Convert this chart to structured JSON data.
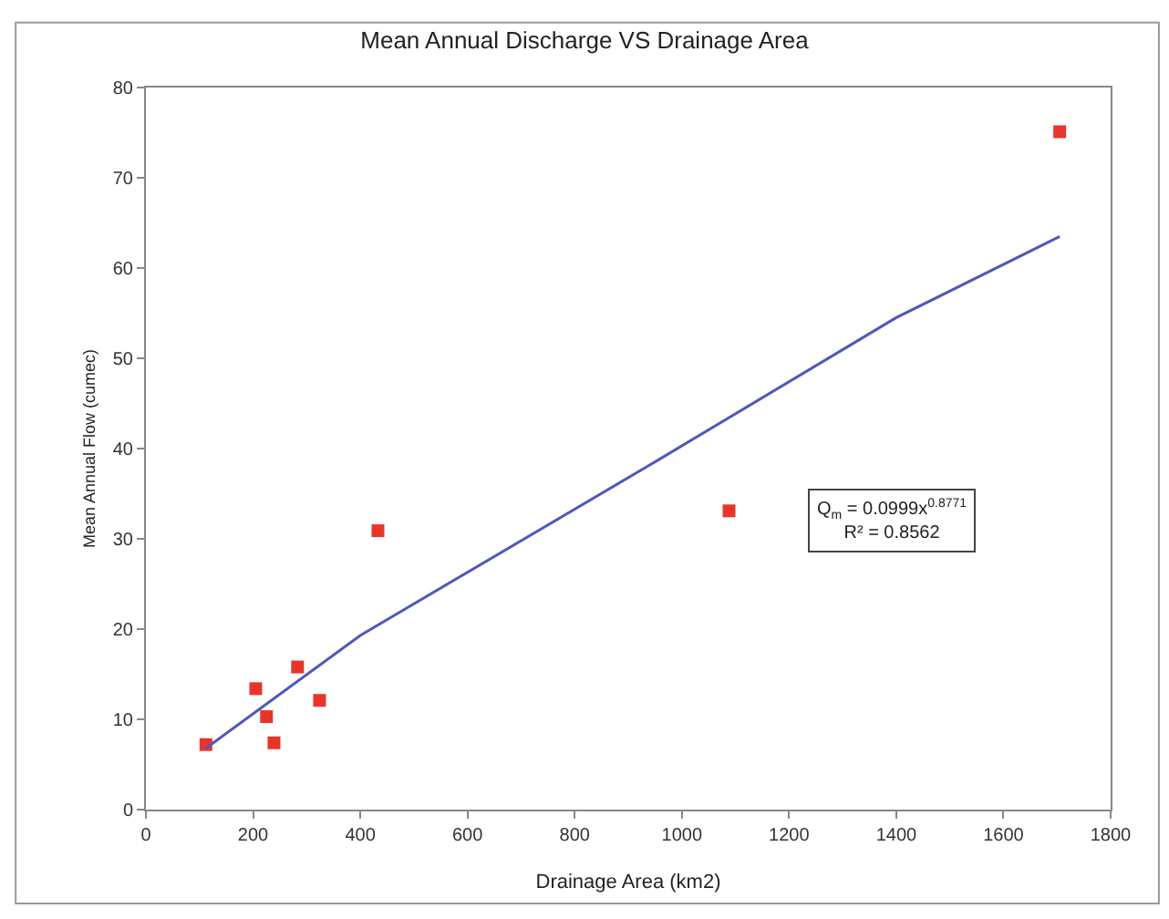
{
  "chart_data": {
    "type": "scatter",
    "title": "Mean Annual Discharge VS Drainage Area",
    "xlabel": "Drainage Area (km2)",
    "ylabel": "Mean Annual Flow (cumec)",
    "series": [
      {
        "color": "#e8352a",
        "marker": "square",
        "x": [
          112,
          205,
          225,
          239,
          283,
          324,
          433,
          1088,
          1705
        ],
        "values": [
          7.2,
          13.4,
          10.3,
          7.4,
          15.8,
          12.1,
          30.9,
          33.1,
          75.1
        ]
      },
      {
        "type": "line",
        "color": "#5058b8",
        "marker": "none",
        "line_style": "solid",
        "x": [
          112,
          400,
          955,
          1400,
          1705
        ],
        "values": [
          6.8,
          19.3,
          38.7,
          54.5,
          63.5
        ]
      }
    ],
    "annotations": [
      "Q$_{m}$ = 0.0999x$^{0.8771}$\nR² = 0.8562"
    ],
    "xlim": [
      0,
      1800
    ],
    "xticks": [
      0,
      200,
      400,
      600,
      800,
      1000,
      1200,
      1400,
      1600,
      1800
    ],
    "ylim": [
      0,
      80
    ],
    "yticks": [
      0,
      10,
      20,
      30,
      40,
      50,
      60,
      70,
      80
    ],
    "grid": false
  }
}
